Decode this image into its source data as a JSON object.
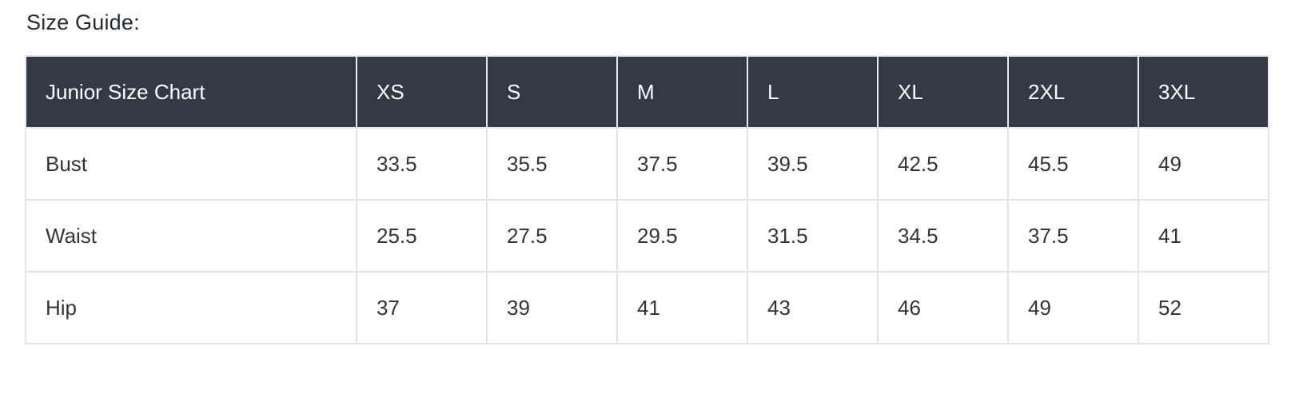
{
  "page": {
    "title": "Size Guide:"
  },
  "chart_data": {
    "type": "table",
    "title": "Size Guide:",
    "columns": [
      "Junior Size Chart",
      "XS",
      "S",
      "M",
      "L",
      "XL",
      "2XL",
      "3XL"
    ],
    "rows": [
      [
        "Bust",
        "33.5",
        "35.5",
        "37.5",
        "39.5",
        "42.5",
        "45.5",
        "49"
      ],
      [
        "Waist",
        "25.5",
        "27.5",
        "29.5",
        "31.5",
        "34.5",
        "37.5",
        "41"
      ],
      [
        "Hip",
        "37",
        "39",
        "41",
        "43",
        "46",
        "49",
        "52"
      ]
    ],
    "units": "inches (implied, not shown)",
    "layout": {
      "header_row": true,
      "label_column": true,
      "grid": true
    }
  },
  "colors": {
    "header_bg": "#343A45",
    "header_text": "#FFFFFF",
    "body_text": "#30353C",
    "title_text": "#242B35",
    "border": "#E2E4E6",
    "page_bg": "#FFFFFF"
  }
}
